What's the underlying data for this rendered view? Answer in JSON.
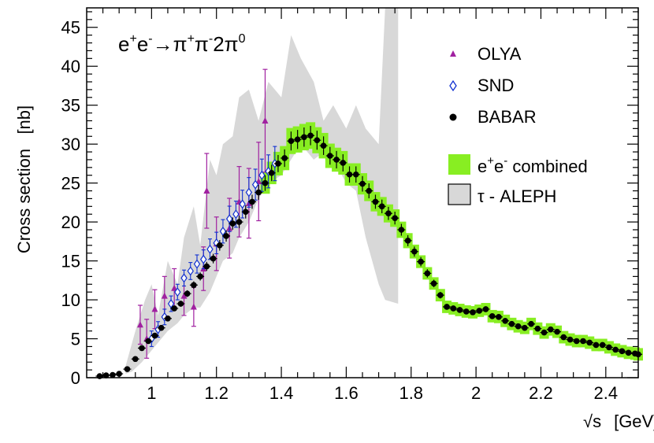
{
  "chart_data": {
    "type": "scatter",
    "reaction_label": {
      "prefix": "e",
      "sup1": "+",
      "e2": "e",
      "sup2": "-",
      "arrow": "→",
      "pi1": "π",
      "sup3": "+",
      "pi2": "π",
      "sup4": "-",
      "mid": "2π",
      "sup5": "0"
    },
    "xlabel": {
      "sqrt": "√s",
      "unit": "[GeV]"
    },
    "ylabel": "Cross section   [nb]",
    "xlim": [
      0.8,
      2.5
    ],
    "ylim": [
      0,
      47.5
    ],
    "x_ticks": [
      1,
      1.2,
      1.4,
      1.6,
      1.8,
      2,
      2.2,
      2.4
    ],
    "x_tick_labels": [
      "1",
      "1.2",
      "1.4",
      "1.6",
      "1.8",
      "2",
      "2.2",
      "2.4"
    ],
    "y_ticks": [
      0,
      5,
      10,
      15,
      20,
      25,
      30,
      35,
      40,
      45
    ],
    "y_tick_labels": [
      "0",
      "5",
      "10",
      "15",
      "20",
      "25",
      "30",
      "35",
      "40",
      "45"
    ],
    "legend": {
      "olya": "OLYA",
      "snd": "SND",
      "babar": "BABAR",
      "combined_main": "e",
      "combined_sup1": "+",
      "combined_e2": "e",
      "combined_sup2": "-",
      "combined_tail": " combined",
      "aleph": "τ - ALEPH"
    },
    "colors": {
      "olya": "#a020a0",
      "snd": "#1030d0",
      "babar": "#000000",
      "combined": "#88ee22",
      "aleph_fill": "#d8d8d8",
      "aleph_legend_stroke": "#000000"
    },
    "aleph_band": {
      "upper": [
        [
          0.92,
          1.5
        ],
        [
          0.95,
          6
        ],
        [
          0.98,
          10
        ],
        [
          1.0,
          12
        ],
        [
          1.02,
          8
        ],
        [
          1.05,
          15
        ],
        [
          1.08,
          12
        ],
        [
          1.1,
          18
        ],
        [
          1.13,
          22
        ],
        [
          1.15,
          17
        ],
        [
          1.18,
          28
        ],
        [
          1.2,
          26
        ],
        [
          1.22,
          30
        ],
        [
          1.25,
          31
        ],
        [
          1.27,
          36
        ],
        [
          1.3,
          37
        ],
        [
          1.33,
          33
        ],
        [
          1.36,
          38
        ],
        [
          1.4,
          36
        ],
        [
          1.43,
          44
        ],
        [
          1.46,
          41
        ],
        [
          1.5,
          38
        ],
        [
          1.53,
          33
        ],
        [
          1.56,
          35
        ],
        [
          1.6,
          32
        ],
        [
          1.63,
          35
        ],
        [
          1.66,
          32
        ],
        [
          1.7,
          30
        ],
        [
          1.72,
          47.5
        ],
        [
          1.76,
          47.5
        ]
      ],
      "lower": [
        [
          1.76,
          9.5
        ],
        [
          1.72,
          10
        ],
        [
          1.7,
          12
        ],
        [
          1.66,
          18
        ],
        [
          1.63,
          24
        ],
        [
          1.6,
          25
        ],
        [
          1.56,
          28
        ],
        [
          1.53,
          29
        ],
        [
          1.5,
          28
        ],
        [
          1.46,
          30
        ],
        [
          1.43,
          28
        ],
        [
          1.4,
          26
        ],
        [
          1.36,
          25
        ],
        [
          1.33,
          23
        ],
        [
          1.3,
          20
        ],
        [
          1.27,
          18
        ],
        [
          1.25,
          16
        ],
        [
          1.22,
          15
        ],
        [
          1.2,
          13
        ],
        [
          1.18,
          11
        ],
        [
          1.15,
          9
        ],
        [
          1.13,
          9
        ],
        [
          1.1,
          8
        ],
        [
          1.08,
          7
        ],
        [
          1.05,
          6
        ],
        [
          1.03,
          5
        ],
        [
          1.0,
          3.5
        ],
        [
          0.97,
          2
        ],
        [
          0.94,
          0.8
        ],
        [
          0.92,
          0.5
        ]
      ]
    },
    "babar": [
      [
        0.84,
        0.2
      ],
      [
        0.86,
        0.3
      ],
      [
        0.88,
        0.35
      ],
      [
        0.9,
        0.5
      ],
      [
        0.925,
        1.1
      ],
      [
        0.95,
        2.4
      ],
      [
        0.97,
        3.8
      ],
      [
        0.99,
        4.7
      ],
      [
        1.01,
        5.4
      ],
      [
        1.03,
        6.4
      ],
      [
        1.05,
        7.6
      ],
      [
        1.07,
        8.9
      ],
      [
        1.09,
        9.5
      ],
      [
        1.11,
        10.8
      ],
      [
        1.13,
        11.9
      ],
      [
        1.15,
        13.0
      ],
      [
        1.17,
        14.3
      ],
      [
        1.19,
        15.3
      ],
      [
        1.21,
        17.0
      ],
      [
        1.23,
        18.2
      ],
      [
        1.25,
        19.8
      ],
      [
        1.27,
        20.0
      ],
      [
        1.29,
        21.3
      ],
      [
        1.31,
        22.6
      ],
      [
        1.33,
        23.8
      ],
      [
        1.35,
        25.0
      ],
      [
        1.37,
        26.3
      ],
      [
        1.39,
        27.5
      ],
      [
        1.41,
        28.2
      ],
      [
        1.43,
        30.4
      ],
      [
        1.45,
        30.6
      ],
      [
        1.47,
        30.9
      ],
      [
        1.49,
        31.1
      ],
      [
        1.51,
        30.5
      ],
      [
        1.53,
        29.8
      ],
      [
        1.55,
        28.5
      ],
      [
        1.57,
        28.0
      ],
      [
        1.59,
        27.6
      ],
      [
        1.61,
        26.1
      ],
      [
        1.63,
        26.1
      ],
      [
        1.65,
        24.9
      ],
      [
        1.67,
        24.0
      ],
      [
        1.69,
        22.6
      ],
      [
        1.71,
        22.0
      ],
      [
        1.73,
        21.1
      ],
      [
        1.75,
        20.5
      ],
      [
        1.77,
        19.0
      ],
      [
        1.79,
        17.6
      ],
      [
        1.81,
        16.2
      ],
      [
        1.83,
        14.9
      ],
      [
        1.85,
        13.4
      ],
      [
        1.87,
        12.1
      ],
      [
        1.89,
        10.6
      ],
      [
        1.91,
        9.1
      ],
      [
        1.93,
        8.9
      ],
      [
        1.95,
        8.7
      ],
      [
        1.97,
        8.5
      ],
      [
        1.99,
        8.4
      ],
      [
        2.01,
        8.6
      ],
      [
        2.03,
        8.8
      ],
      [
        2.05,
        7.9
      ],
      [
        2.07,
        7.8
      ],
      [
        2.09,
        7.3
      ],
      [
        2.11,
        6.9
      ],
      [
        2.13,
        6.6
      ],
      [
        2.15,
        6.4
      ],
      [
        2.17,
        6.9
      ],
      [
        2.19,
        6.3
      ],
      [
        2.21,
        5.8
      ],
      [
        2.23,
        6.2
      ],
      [
        2.25,
        5.9
      ],
      [
        2.27,
        5.2
      ],
      [
        2.29,
        4.9
      ],
      [
        2.31,
        4.7
      ],
      [
        2.33,
        4.7
      ],
      [
        2.35,
        4.5
      ],
      [
        2.37,
        4.2
      ],
      [
        2.39,
        4.2
      ],
      [
        2.41,
        3.9
      ],
      [
        2.43,
        3.6
      ],
      [
        2.45,
        3.4
      ],
      [
        2.47,
        3.2
      ],
      [
        2.49,
        3.1
      ],
      [
        2.5,
        3.0
      ]
    ],
    "snd": [
      [
        1.0,
        5.0
      ],
      [
        1.02,
        6.2
      ],
      [
        1.04,
        7.8
      ],
      [
        1.06,
        9.5
      ],
      [
        1.08,
        11.0
      ],
      [
        1.1,
        12.8
      ],
      [
        1.12,
        13.7
      ],
      [
        1.14,
        14.6
      ],
      [
        1.16,
        15.2
      ],
      [
        1.18,
        16.5
      ],
      [
        1.2,
        17.3
      ],
      [
        1.22,
        18.8
      ],
      [
        1.24,
        20.4
      ],
      [
        1.26,
        21.0
      ],
      [
        1.28,
        22.3
      ],
      [
        1.3,
        23.8
      ],
      [
        1.32,
        24.8
      ],
      [
        1.34,
        26.0
      ],
      [
        1.36,
        26.5
      ],
      [
        1.38,
        27.5
      ]
    ],
    "olya": [
      [
        0.965,
        6.8
      ],
      [
        0.985,
        5.0
      ],
      [
        1.01,
        8.8
      ],
      [
        1.04,
        10.5
      ],
      [
        1.07,
        11.5
      ],
      [
        1.1,
        10.5
      ],
      [
        1.13,
        9.1
      ],
      [
        1.16,
        14.0
      ],
      [
        1.17,
        24.0
      ],
      [
        1.2,
        17.2
      ],
      [
        1.24,
        19.2
      ],
      [
        1.27,
        22.6
      ],
      [
        1.3,
        22.4
      ],
      [
        1.33,
        25.2
      ],
      [
        1.35,
        33.0
      ]
    ]
  }
}
